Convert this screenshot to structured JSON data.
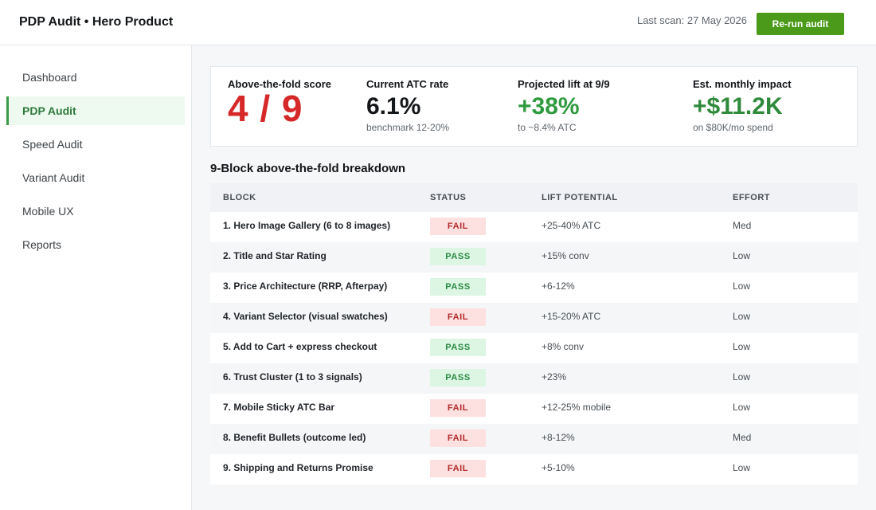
{
  "header": {
    "title": "PDP Audit • Hero Product",
    "last_scan": "Last scan: 27 May 2026",
    "rerun_label": "Re-run audit",
    "accent_color": "#4c9a1a"
  },
  "sidebar": {
    "items": [
      {
        "label": "Dashboard",
        "active": false
      },
      {
        "label": "PDP Audit",
        "active": true
      },
      {
        "label": "Speed Audit",
        "active": false
      },
      {
        "label": "Variant Audit",
        "active": false
      },
      {
        "label": "Mobile UX",
        "active": false
      },
      {
        "label": "Reports",
        "active": false
      }
    ]
  },
  "metrics": {
    "score": {
      "label": "Above-the-fold score",
      "value": "4 / 9",
      "color": "#d62828"
    },
    "atc": {
      "label": "Current ATC rate",
      "value": "6.1%",
      "sub": "benchmark 12-20%",
      "color": "#14171a"
    },
    "lift": {
      "label": "Projected lift at 9/9",
      "value": "+38%",
      "sub": "to ~8.4% ATC",
      "color": "#2f9a3e"
    },
    "impact": {
      "label": "Est. monthly impact",
      "value": "+$11.2K",
      "sub": "on $80K/mo spend",
      "color": "#2f8a3b"
    }
  },
  "breakdown": {
    "title": "9-Block above-the-fold breakdown",
    "columns": [
      "BLOCK",
      "STATUS",
      "LIFT POTENTIAL",
      "EFFORT"
    ],
    "rows": [
      {
        "block": "1. Hero Image Gallery (6 to 8 images)",
        "status": "FAIL",
        "lift": "+25-40% ATC",
        "effort": "Med"
      },
      {
        "block": "2. Title and Star Rating",
        "status": "PASS",
        "lift": "+15% conv",
        "effort": "Low"
      },
      {
        "block": "3. Price Architecture (RRP, Afterpay)",
        "status": "PASS",
        "lift": "+6-12%",
        "effort": "Low"
      },
      {
        "block": "4. Variant Selector (visual swatches)",
        "status": "FAIL",
        "lift": "+15-20% ATC",
        "effort": "Low"
      },
      {
        "block": "5. Add to Cart + express checkout",
        "status": "PASS",
        "lift": "+8% conv",
        "effort": "Low"
      },
      {
        "block": "6. Trust Cluster (1 to 3 signals)",
        "status": "PASS",
        "lift": "+23%",
        "effort": "Low"
      },
      {
        "block": "7. Mobile Sticky ATC Bar",
        "status": "FAIL",
        "lift": "+12-25% mobile",
        "effort": "Low"
      },
      {
        "block": "8. Benefit Bullets (outcome led)",
        "status": "FAIL",
        "lift": "+8-12%",
        "effort": "Med"
      },
      {
        "block": "9. Shipping and Returns Promise",
        "status": "FAIL",
        "lift": "+5-10%",
        "effort": "Low"
      }
    ],
    "status_colors": {
      "FAIL": "#b42a2a",
      "PASS": "#2b8a44"
    }
  }
}
